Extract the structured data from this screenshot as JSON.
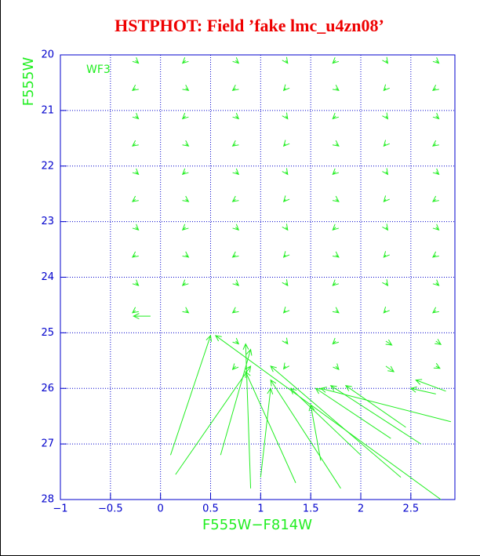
{
  "chart_data": {
    "type": "quiver",
    "title": "HSTPHOT: Field ’fake lmc_u4zn08’",
    "x_label": "F555W−F814W",
    "y_label": "F555W",
    "annotation": "WF3",
    "color": "#22ee22",
    "axis_color": "#0000cc",
    "grid": true,
    "xlim": [
      -1,
      2.94
    ],
    "ylim": [
      28,
      20
    ],
    "xticks": [
      {
        "value": -1,
        "label": "−1"
      },
      {
        "value": -0.5,
        "label": "−0.5"
      },
      0,
      0.5,
      1,
      1.5,
      2,
      2.5
    ],
    "yticks": [
      20,
      21,
      22,
      23,
      24,
      25,
      26,
      27,
      28
    ],
    "x": [
      -0.25,
      0.25,
      0.75,
      1.25,
      1.75,
      2.25,
      2.75,
      -0.25,
      0.25,
      0.75,
      1.25,
      1.75,
      2.25,
      2.75,
      -0.25,
      0.25,
      0.75,
      1.25,
      1.75,
      2.25,
      2.75,
      -0.25,
      0.25,
      0.75,
      1.25,
      1.75,
      2.25,
      2.75,
      -0.25,
      0.25,
      0.75,
      1.25,
      1.75,
      2.25,
      2.75,
      -0.25,
      0.25,
      0.75,
      1.25,
      1.75,
      2.25,
      2.75,
      -0.25,
      0.25,
      0.75,
      1.25,
      1.75,
      2.25,
      2.75,
      -0.25,
      0.25,
      0.75,
      1.25,
      1.75,
      2.25,
      2.75,
      -0.25,
      0.25,
      0.75,
      1.25,
      1.75,
      2.25,
      2.75,
      -0.25,
      0.25,
      0.75,
      1.25,
      1.75,
      2.25,
      2.75,
      0.75,
      1.25,
      1.75,
      2.25,
      2.75,
      0.75,
      1.25,
      1.75,
      2.25,
      2.75,
      -0.1,
      0.1,
      0.15,
      0.6,
      2.8,
      2.9,
      2.4,
      1.8,
      1.35,
      2.0,
      1.0,
      2.6,
      1.6,
      0.9,
      2.45,
      2.3,
      2.75,
      2.85
    ],
    "y": [
      20.1,
      20.1,
      20.1,
      20.1,
      20.1,
      20.1,
      20.1,
      20.6,
      20.6,
      20.6,
      20.6,
      20.6,
      20.6,
      20.6,
      21.1,
      21.1,
      21.1,
      21.1,
      21.1,
      21.1,
      21.1,
      21.6,
      21.6,
      21.6,
      21.6,
      21.6,
      21.6,
      21.6,
      22.1,
      22.1,
      22.1,
      22.1,
      22.1,
      22.1,
      22.1,
      22.6,
      22.6,
      22.6,
      22.6,
      22.6,
      22.6,
      22.6,
      23.1,
      23.1,
      23.1,
      23.1,
      23.1,
      23.1,
      23.1,
      23.6,
      23.6,
      23.6,
      23.6,
      23.6,
      23.6,
      23.6,
      24.1,
      24.1,
      24.1,
      24.1,
      24.1,
      24.1,
      24.1,
      24.6,
      24.6,
      24.6,
      24.6,
      24.6,
      24.6,
      24.6,
      25.15,
      25.15,
      25.15,
      25.15,
      25.15,
      25.6,
      25.6,
      25.6,
      25.6,
      25.6,
      24.7,
      27.2,
      27.55,
      27.2,
      28.0,
      26.6,
      27.6,
      27.8,
      27.7,
      27.2,
      27.6,
      27.0,
      27.3,
      27.8,
      26.7,
      26.9,
      26.1,
      26.05
    ],
    "x_end": [
      -0.22,
      0.22,
      0.78,
      1.27,
      1.72,
      2.27,
      2.78,
      -0.28,
      0.28,
      0.72,
      1.23,
      1.78,
      2.23,
      2.72,
      -0.22,
      0.22,
      0.78,
      1.27,
      1.72,
      2.27,
      2.78,
      -0.28,
      0.28,
      0.72,
      1.23,
      1.78,
      2.23,
      2.72,
      -0.22,
      0.22,
      0.78,
      1.27,
      1.72,
      2.27,
      2.78,
      -0.28,
      0.28,
      0.72,
      1.23,
      1.78,
      2.23,
      2.72,
      -0.22,
      0.22,
      0.78,
      1.27,
      1.72,
      2.27,
      2.78,
      -0.28,
      0.28,
      0.72,
      1.23,
      1.78,
      2.23,
      2.72,
      -0.22,
      0.22,
      0.78,
      1.27,
      1.72,
      2.27,
      2.78,
      -0.28,
      0.28,
      0.72,
      1.23,
      1.78,
      2.23,
      2.72,
      0.78,
      1.27,
      1.72,
      2.31,
      2.8,
      0.72,
      1.23,
      1.78,
      2.33,
      2.79,
      -0.27,
      0.5,
      0.9,
      0.9,
      0.55,
      1.6,
      1.1,
      1.1,
      0.85,
      1.3,
      1.1,
      1.7,
      1.5,
      0.85,
      1.85,
      1.55,
      2.5,
      2.55
    ],
    "y_end": [
      20.15,
      20.15,
      20.15,
      20.15,
      20.15,
      20.15,
      20.15,
      20.64,
      20.64,
      20.64,
      20.64,
      20.64,
      20.64,
      20.64,
      21.15,
      21.15,
      21.15,
      21.15,
      21.15,
      21.15,
      21.15,
      21.64,
      21.64,
      21.64,
      21.64,
      21.64,
      21.64,
      21.64,
      22.15,
      22.15,
      22.15,
      22.15,
      22.15,
      22.15,
      22.15,
      22.64,
      22.64,
      22.64,
      22.64,
      22.64,
      22.64,
      22.64,
      23.15,
      23.15,
      23.15,
      23.15,
      23.15,
      23.15,
      23.15,
      23.64,
      23.64,
      23.64,
      23.64,
      23.64,
      23.64,
      23.64,
      24.15,
      24.15,
      24.15,
      24.15,
      24.15,
      24.15,
      24.15,
      24.64,
      24.64,
      24.64,
      24.64,
      24.64,
      24.64,
      24.64,
      25.2,
      25.2,
      25.2,
      25.22,
      25.21,
      25.66,
      25.65,
      25.66,
      25.7,
      25.64,
      24.7,
      25.05,
      25.6,
      25.3,
      25.05,
      26.0,
      25.6,
      25.85,
      25.7,
      26.0,
      26.0,
      25.95,
      26.3,
      25.2,
      25.95,
      26.0,
      26.0,
      25.85
    ]
  }
}
